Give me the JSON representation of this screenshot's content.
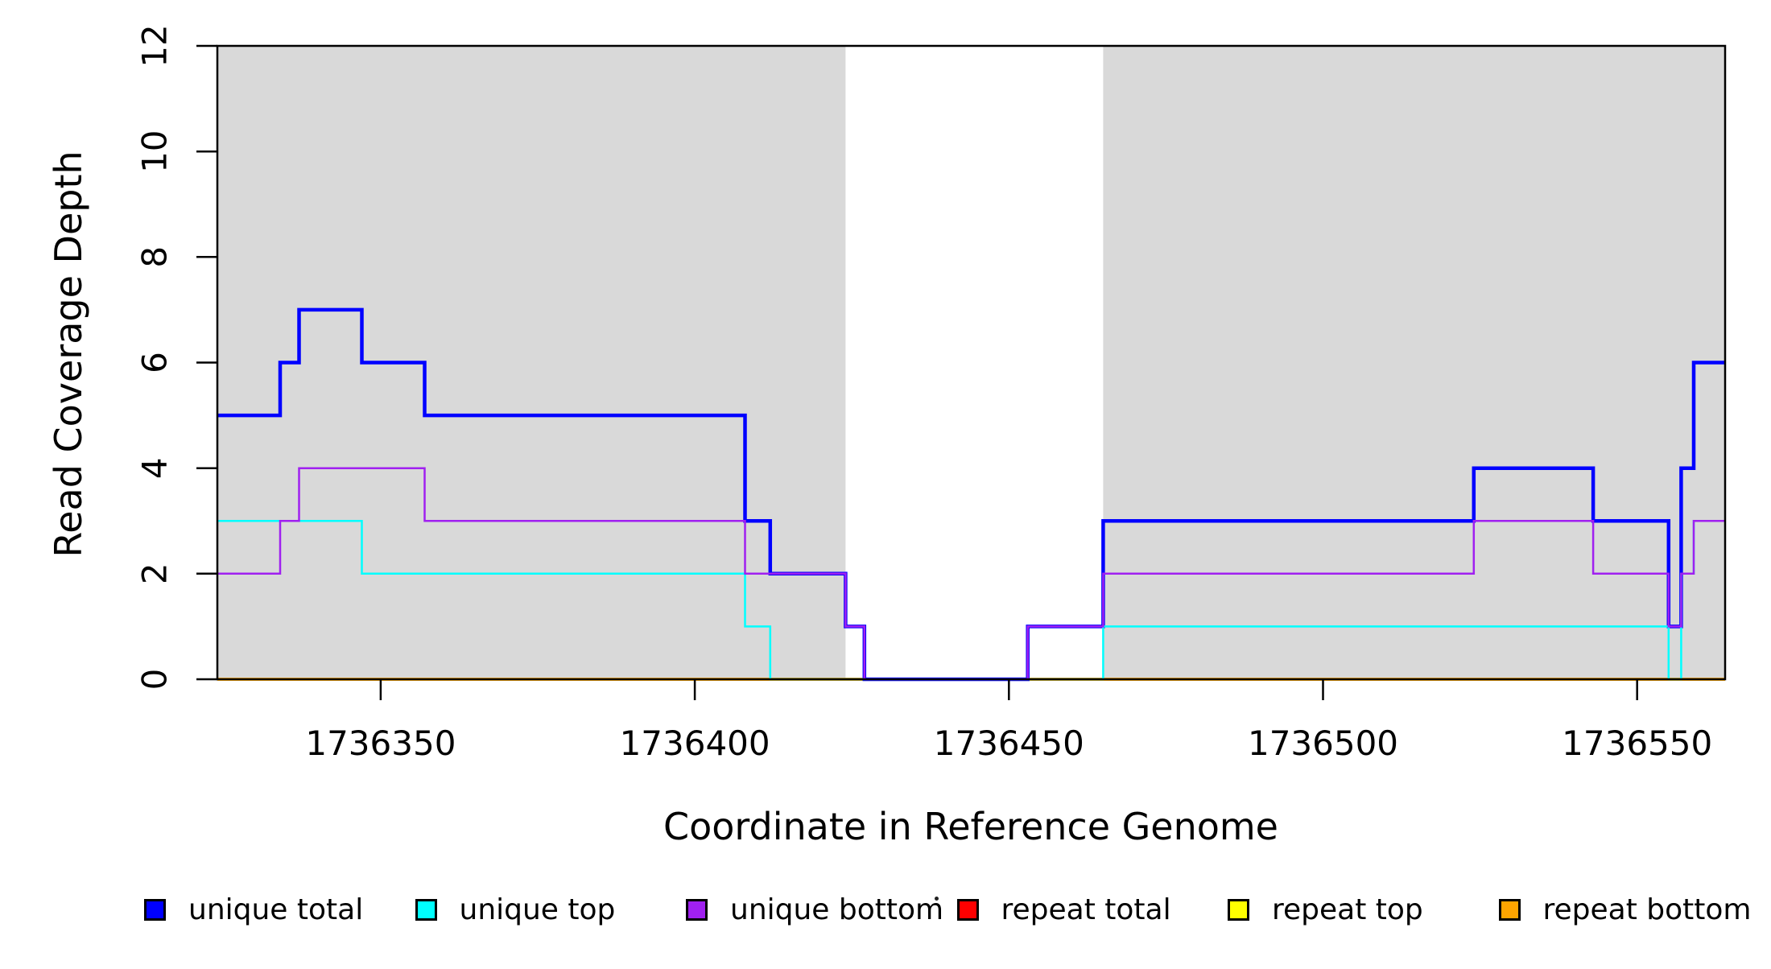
{
  "figure": {
    "background": "#FFFFFF",
    "frame_color": "#000000",
    "shaded_band_color": "#D9D9D9"
  },
  "chart_data": {
    "type": "line",
    "subtype": "step",
    "title": "",
    "xlabel": "Coordinate in Reference Genome",
    "ylabel": "Read Coverage Depth",
    "xlim": [
      1736324,
      1736564
    ],
    "ylim": [
      0,
      12
    ],
    "x_ticks": [
      1736350,
      1736400,
      1736450,
      1736500,
      1736550
    ],
    "y_ticks": [
      0,
      2,
      4,
      6,
      8,
      10,
      12
    ],
    "grid": false,
    "legend_position": "bottom",
    "shaded_regions": {
      "color": "#D9D9D9",
      "regions": [
        [
          1736324,
          1736424
        ],
        [
          1736465,
          1736564
        ]
      ]
    },
    "step_x": [
      1736324,
      1736334,
      1736337,
      1736347,
      1736357,
      1736408,
      1736412,
      1736424,
      1736427,
      1736453,
      1736465,
      1736524,
      1736543,
      1736555,
      1736557,
      1736559,
      1736564
    ],
    "series": [
      {
        "name": "repeat total",
        "color": "#FF0000",
        "width": 3.5,
        "values": [
          0,
          0,
          0,
          0,
          0,
          0,
          0,
          0,
          0,
          0,
          0,
          0,
          0,
          0,
          0,
          0
        ]
      },
      {
        "name": "repeat top",
        "color": "#FFFF00",
        "width": 3.5,
        "values": [
          0,
          0,
          0,
          0,
          0,
          0,
          0,
          0,
          0,
          0,
          0,
          0,
          0,
          0,
          0,
          0
        ]
      },
      {
        "name": "repeat bottom",
        "color": "#FFA500",
        "width": 3.5,
        "values": [
          0,
          0,
          0,
          0,
          0,
          0,
          0,
          0,
          0,
          0,
          0,
          0,
          0,
          0,
          0,
          0
        ]
      },
      {
        "name": "unique total",
        "color": "#0000FF",
        "width": 4.5,
        "values": [
          5,
          6,
          7,
          6,
          5,
          3,
          2,
          1,
          0,
          1,
          3,
          4,
          3,
          1,
          4,
          6
        ]
      },
      {
        "name": "unique top",
        "color": "#00FFFF",
        "width": 2.5,
        "values": [
          3,
          3,
          3,
          2,
          2,
          1,
          0,
          0,
          0,
          0,
          1,
          1,
          1,
          0,
          2,
          3
        ]
      },
      {
        "name": "unique bottom",
        "color": "#A020F0",
        "width": 2.5,
        "values": [
          2,
          3,
          4,
          4,
          3,
          2,
          2,
          1,
          0,
          1,
          2,
          3,
          2,
          1,
          2,
          3
        ]
      }
    ]
  },
  "legend": {
    "items": [
      {
        "label": "unique total",
        "color": "#0000FF"
      },
      {
        "label": "unique top",
        "color": "#00FFFF"
      },
      {
        "label": "unique bottom",
        "color": "#A020F0"
      },
      {
        "label": "repeat total",
        "color": "#FF0000"
      },
      {
        "label": "repeat top",
        "color": "#FFFF00"
      },
      {
        "label": "repeat bottom",
        "color": "#FFA500"
      }
    ],
    "stray_dot": "·"
  }
}
